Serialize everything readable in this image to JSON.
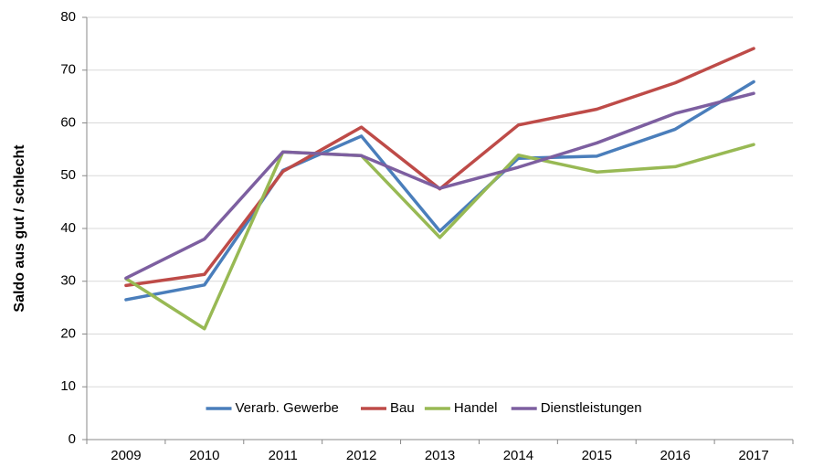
{
  "chart_data": {
    "type": "line",
    "y_label": "Saldo aus gut / schlecht",
    "categories": [
      "2009",
      "2010",
      "2011",
      "2012",
      "2013",
      "2014",
      "2015",
      "2016",
      "2017"
    ],
    "series": [
      {
        "name": "Verarb. Gewerbe",
        "color": "#4a7ebb",
        "values": [
          26.5,
          29.3,
          51,
          57.5,
          39.5,
          53.3,
          53.7,
          58.8,
          67.8
        ]
      },
      {
        "name": "Bau",
        "color": "#be4b48",
        "values": [
          29.2,
          31.3,
          50.8,
          59.2,
          47.5,
          59.6,
          62.6,
          67.6,
          74.1
        ]
      },
      {
        "name": "Handel",
        "color": "#98b954",
        "values": [
          30.5,
          21,
          54.5,
          53.8,
          38.3,
          53.9,
          50.7,
          51.7,
          55.9
        ]
      },
      {
        "name": "Dienstleistungen",
        "color": "#7d5fa0",
        "values": [
          30.6,
          38,
          54.5,
          53.8,
          47.6,
          51.6,
          56.2,
          61.8,
          65.6
        ]
      }
    ],
    "ylim": [
      0,
      80
    ],
    "yticks": [
      0,
      10,
      20,
      30,
      40,
      50,
      60,
      70,
      80
    ],
    "grid": true,
    "legend": "bottom"
  }
}
